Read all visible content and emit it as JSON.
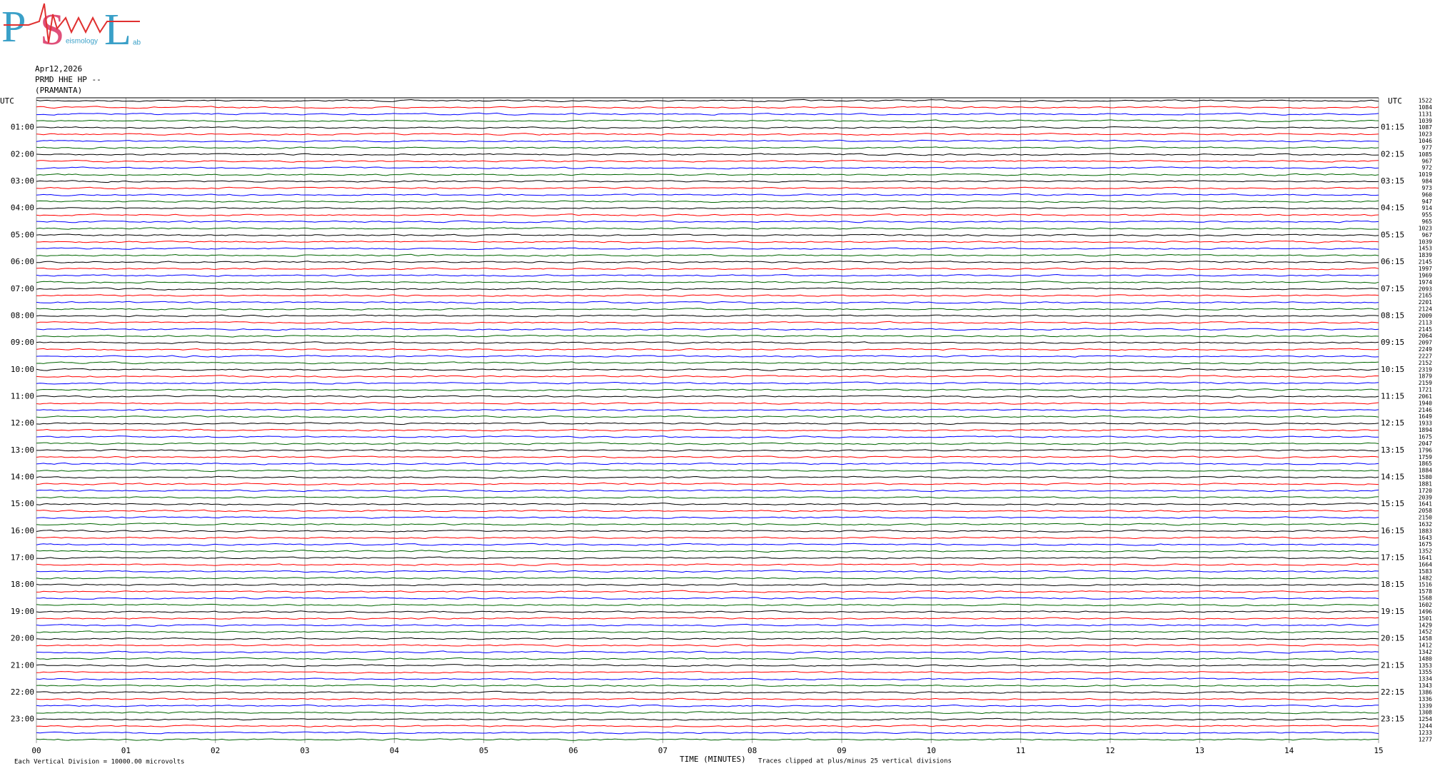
{
  "logo": {
    "letters": [
      "P",
      "S",
      "L"
    ],
    "small": [
      "eismology",
      "ab"
    ]
  },
  "info": [
    "Apr12,2026",
    "PRMD HHE HP --",
    "(PRAMANTA)"
  ],
  "left_axis_title": "UTC",
  "right_axis_title": "UTC",
  "left_labels": [
    "01:00",
    "02:00",
    "03:00",
    "04:00",
    "05:00",
    "06:00",
    "07:00",
    "08:00",
    "09:00",
    "10:00",
    "11:00",
    "12:00",
    "13:00",
    "14:00",
    "15:00",
    "16:00",
    "17:00",
    "18:00",
    "19:00",
    "20:00",
    "21:00",
    "22:00",
    "23:00"
  ],
  "right_labels": [
    "01:15",
    "02:15",
    "03:15",
    "04:15",
    "05:15",
    "06:15",
    "07:15",
    "08:15",
    "09:15",
    "10:15",
    "11:15",
    "12:15",
    "13:15",
    "14:15",
    "15:15",
    "16:15",
    "17:15",
    "18:15",
    "19:15",
    "20:15",
    "21:15",
    "22:15",
    "23:15"
  ],
  "x_axis": {
    "title": "TIME (MINUTES)",
    "ticks": [
      "00",
      "01",
      "02",
      "03",
      "04",
      "05",
      "06",
      "07",
      "08",
      "09",
      "10",
      "11",
      "12",
      "13",
      "14",
      "15"
    ]
  },
  "row_values": [
    1522,
    1084,
    1131,
    1039,
    1087,
    1023,
    1046,
    977,
    1085,
    967,
    972,
    1019,
    984,
    973,
    960,
    947,
    914,
    955,
    965,
    1023,
    967,
    1039,
    1453,
    1839,
    2145,
    1997,
    1969,
    1974,
    2093,
    2165,
    2201,
    2124,
    2009,
    2113,
    2145,
    2064,
    2097,
    2249,
    2227,
    2152,
    2319,
    1879,
    2159,
    1721,
    2061,
    1940,
    2146,
    1649,
    1933,
    1894,
    1675,
    2047,
    1796,
    1759,
    1865,
    1884,
    1580,
    1881,
    1720,
    2039,
    1641,
    2058,
    2150,
    1632,
    1883,
    1643,
    1675,
    1352,
    1641,
    1664,
    1583,
    1482,
    1516,
    1578,
    1568,
    1602,
    1496,
    1501,
    1429,
    1452,
    1458,
    1412,
    1342,
    1480,
    1353,
    1355,
    1334,
    1343,
    1386,
    1336,
    1339,
    1308,
    1254,
    1244,
    1233,
    1277
  ],
  "trace_colors": [
    "#000000",
    "#ff0000",
    "#0000ff",
    "#006400"
  ],
  "footer_left": "Each Vertical Division = 10000.00 microvolts",
  "footer_note": "Traces clipped at plus/minus 25 vertical divisions"
}
